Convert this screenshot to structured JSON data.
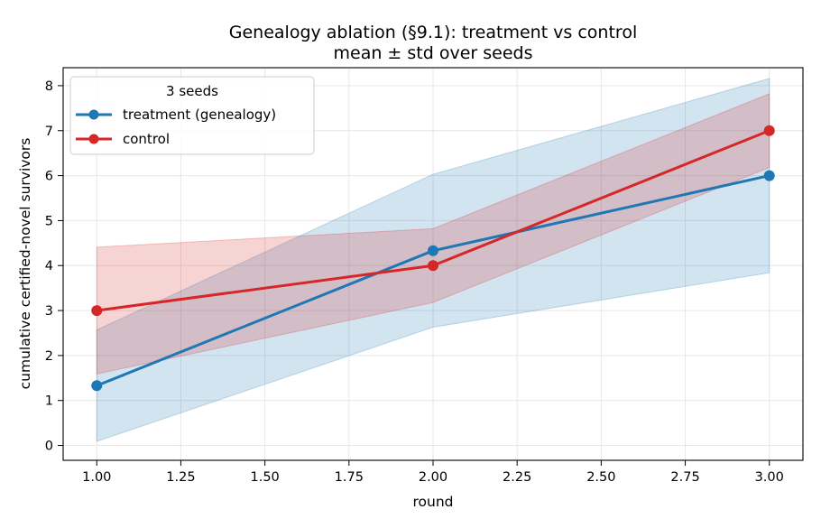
{
  "chart_data": {
    "type": "line",
    "title": "Genealogy ablation (§9.1): treatment vs control",
    "subtitle": "mean ± std over seeds",
    "xlabel": "round",
    "ylabel": "cumulative certified-novel survivors",
    "xlim": [
      0.9,
      3.1
    ],
    "ylim": [
      -0.33,
      8.4
    ],
    "xticks": [
      "1.00",
      "1.25",
      "1.50",
      "1.75",
      "2.00",
      "2.25",
      "2.50",
      "2.75",
      "3.00"
    ],
    "yticks": [
      "0",
      "1",
      "2",
      "3",
      "4",
      "5",
      "6",
      "7",
      "8"
    ],
    "grid": true,
    "legend": {
      "title": "3 seeds",
      "placement": "top-left"
    },
    "x": [
      1,
      2,
      3
    ],
    "series": [
      {
        "name": "treatment (genealogy)",
        "color": "#1f77b4",
        "values": [
          1.33,
          4.33,
          6.0
        ],
        "lower": [
          0.09,
          2.63,
          3.84
        ],
        "upper": [
          2.57,
          6.03,
          8.16
        ]
      },
      {
        "name": "control",
        "color": "#d62728",
        "values": [
          3.0,
          4.0,
          7.0
        ],
        "lower": [
          1.59,
          3.18,
          6.18
        ],
        "upper": [
          4.41,
          4.82,
          7.82
        ]
      }
    ]
  }
}
